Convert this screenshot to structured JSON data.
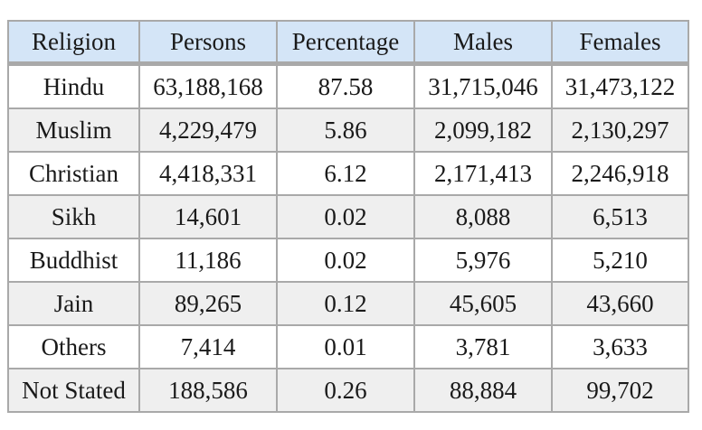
{
  "table": {
    "headers": [
      "Religion",
      "Persons",
      "Percentage",
      "Males",
      "Females"
    ],
    "rows": [
      [
        "Hindu",
        "63,188,168",
        "87.58",
        "31,715,046",
        "31,473,122"
      ],
      [
        "Muslim",
        "4,229,479",
        "5.86",
        "2,099,182",
        "2,130,297"
      ],
      [
        "Christian",
        "4,418,331",
        "6.12",
        "2,171,413",
        "2,246,918"
      ],
      [
        "Sikh",
        "14,601",
        "0.02",
        "8,088",
        "6,513"
      ],
      [
        "Buddhist",
        "11,186",
        "0.02",
        "5,976",
        "5,210"
      ],
      [
        "Jain",
        "89,265",
        "0.12",
        "45,605",
        "43,660"
      ],
      [
        "Others",
        "7,414",
        "0.01",
        "3,781",
        "3,633"
      ],
      [
        "Not Stated",
        "188,586",
        "0.26",
        "88,884",
        "99,702"
      ]
    ]
  },
  "colors": {
    "header_bg": "#d4e5f7",
    "alt_row_bg": "#efefef",
    "border": "#a9a9a9"
  }
}
